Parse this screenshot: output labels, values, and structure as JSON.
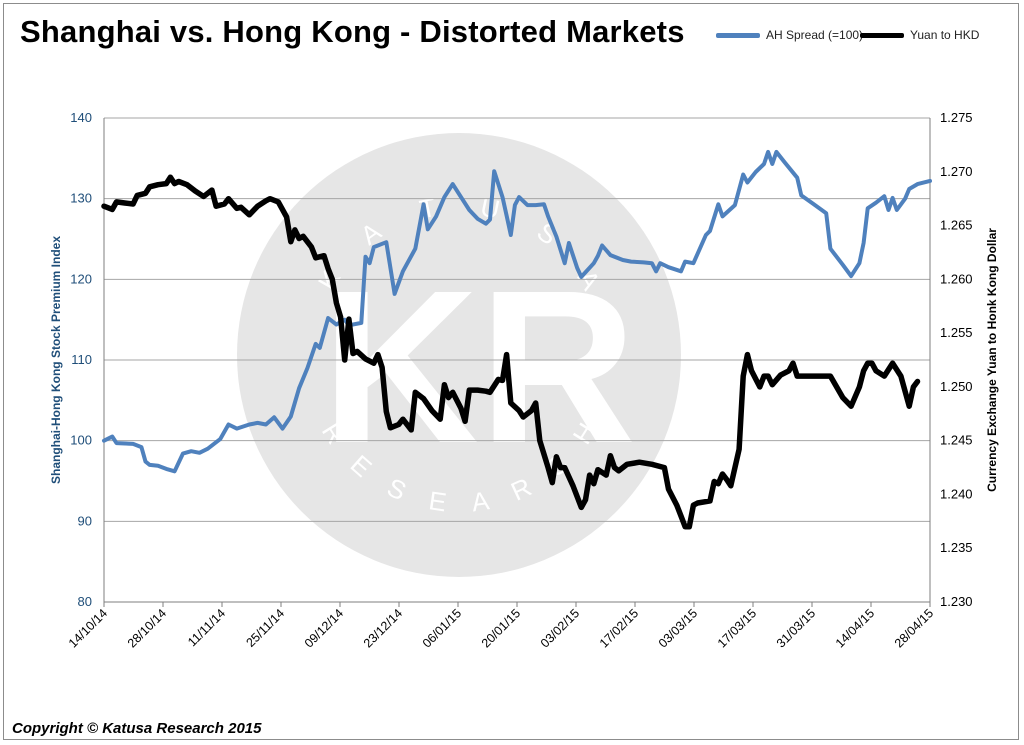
{
  "chart_data": {
    "type": "line",
    "title": "Shanghai vs. Hong Kong - Distorted Markets",
    "copyright": "Copyright © Katusa Research 2015",
    "watermark": {
      "initials": "KR",
      "top_text": "KATUSA",
      "bottom_text": "RESEARCH"
    },
    "legend_position": "top-right",
    "grid": true,
    "colors": {
      "ah_spread": "#4f81bd",
      "yuan_hkd": "#000000",
      "grid": "#a6a6a6",
      "watermark": "#e6e6e6"
    },
    "x_ticks": [
      "14/10/14",
      "28/10/14",
      "11/11/14",
      "25/11/14",
      "09/12/14",
      "23/12/14",
      "06/01/15",
      "20/01/15",
      "03/02/15",
      "17/02/15",
      "03/03/15",
      "17/03/15",
      "31/03/15",
      "14/04/15",
      "28/04/15"
    ],
    "x_range": [
      "2014-10-14",
      "2015-05-01"
    ],
    "y_left": {
      "label": "Shanghai-Hong Kong Stock Premium Index",
      "ylim": [
        80,
        140
      ],
      "ticks": [
        "80",
        "90",
        "100",
        "110",
        "120",
        "130",
        "140"
      ]
    },
    "y_right": {
      "label": "Currency Exchange Yuan to Honk Kong Dollar",
      "ylim": [
        1.23,
        1.275
      ],
      "ticks": [
        "1.230",
        "1.235",
        "1.240",
        "1.245",
        "1.250",
        "1.255",
        "1.260",
        "1.265",
        "1.270",
        "1.275"
      ]
    },
    "series": [
      {
        "name": "AH Spread (=100)",
        "axis": "left",
        "points": [
          [
            "2014-10-14",
            100.0
          ],
          [
            "2014-10-16",
            100.5
          ],
          [
            "2014-10-17",
            99.7
          ],
          [
            "2014-10-21",
            99.6
          ],
          [
            "2014-10-23",
            99.2
          ],
          [
            "2014-10-24",
            97.4
          ],
          [
            "2014-10-25",
            97.0
          ],
          [
            "2014-10-27",
            96.9
          ],
          [
            "2014-10-29",
            96.5
          ],
          [
            "2014-10-31",
            96.2
          ],
          [
            "2014-11-02",
            98.4
          ],
          [
            "2014-11-04",
            98.7
          ],
          [
            "2014-11-06",
            98.5
          ],
          [
            "2014-11-08",
            99.0
          ],
          [
            "2014-11-11",
            100.2
          ],
          [
            "2014-11-13",
            102.0
          ],
          [
            "2014-11-15",
            101.5
          ],
          [
            "2014-11-18",
            102.0
          ],
          [
            "2014-11-20",
            102.2
          ],
          [
            "2014-11-22",
            102.0
          ],
          [
            "2014-11-24",
            102.9
          ],
          [
            "2014-11-26",
            101.5
          ],
          [
            "2014-11-28",
            103.0
          ],
          [
            "2014-11-30",
            106.5
          ],
          [
            "2014-12-02",
            109.0
          ],
          [
            "2014-12-04",
            112.0
          ],
          [
            "2014-12-05",
            111.5
          ],
          [
            "2014-12-07",
            115.2
          ],
          [
            "2014-12-09",
            114.4
          ],
          [
            "2014-12-11",
            115.0
          ],
          [
            "2014-12-12",
            114.3
          ],
          [
            "2014-12-15",
            114.6
          ],
          [
            "2014-12-16",
            122.8
          ],
          [
            "2014-12-17",
            122.0
          ],
          [
            "2014-12-18",
            124.0
          ],
          [
            "2014-12-21",
            124.6
          ],
          [
            "2014-12-23",
            118.2
          ],
          [
            "2014-12-25",
            121.0
          ],
          [
            "2014-12-28",
            123.8
          ],
          [
            "2014-12-30",
            129.3
          ],
          [
            "2014-12-31",
            126.2
          ],
          [
            "2015-01-02",
            127.8
          ],
          [
            "2015-01-04",
            130.2
          ],
          [
            "2015-01-06",
            131.8
          ],
          [
            "2015-01-08",
            130.2
          ],
          [
            "2015-01-10",
            128.6
          ],
          [
            "2015-01-12",
            127.5
          ],
          [
            "2015-01-14",
            126.9
          ],
          [
            "2015-01-15",
            127.4
          ],
          [
            "2015-01-16",
            133.4
          ],
          [
            "2015-01-18",
            130.2
          ],
          [
            "2015-01-19",
            127.9
          ],
          [
            "2015-01-20",
            125.5
          ],
          [
            "2015-01-21",
            129.2
          ],
          [
            "2015-01-22",
            130.2
          ],
          [
            "2015-01-24",
            129.2
          ],
          [
            "2015-01-26",
            129.2
          ],
          [
            "2015-01-28",
            129.3
          ],
          [
            "2015-01-29",
            127.8
          ],
          [
            "2015-01-31",
            125.3
          ],
          [
            "2015-02-02",
            122.0
          ],
          [
            "2015-02-03",
            124.5
          ],
          [
            "2015-02-05",
            121.4
          ],
          [
            "2015-02-06",
            120.3
          ],
          [
            "2015-02-09",
            122.0
          ],
          [
            "2015-02-10",
            122.9
          ],
          [
            "2015-02-11",
            124.2
          ],
          [
            "2015-02-13",
            123.0
          ],
          [
            "2015-02-16",
            122.4
          ],
          [
            "2015-02-18",
            122.2
          ],
          [
            "2015-02-21",
            122.1
          ],
          [
            "2015-02-23",
            122.0
          ],
          [
            "2015-02-24",
            121.0
          ],
          [
            "2015-02-25",
            122.0
          ],
          [
            "2015-02-27",
            121.5
          ],
          [
            "2015-03-02",
            121.0
          ],
          [
            "2015-03-03",
            122.2
          ],
          [
            "2015-03-05",
            122.0
          ],
          [
            "2015-03-08",
            125.5
          ],
          [
            "2015-03-09",
            126.0
          ],
          [
            "2015-03-11",
            129.3
          ],
          [
            "2015-03-12",
            127.8
          ],
          [
            "2015-03-15",
            129.2
          ],
          [
            "2015-03-17",
            133.0
          ],
          [
            "2015-03-18",
            132.0
          ],
          [
            "2015-03-20",
            133.3
          ],
          [
            "2015-03-22",
            134.3
          ],
          [
            "2015-03-23",
            135.8
          ],
          [
            "2015-03-24",
            134.3
          ],
          [
            "2015-03-25",
            135.8
          ],
          [
            "2015-03-27",
            134.5
          ],
          [
            "2015-03-30",
            132.6
          ],
          [
            "2015-03-31",
            130.4
          ],
          [
            "2015-04-03",
            129.3
          ],
          [
            "2015-04-06",
            128.2
          ],
          [
            "2015-04-07",
            123.8
          ],
          [
            "2015-04-10",
            121.8
          ],
          [
            "2015-04-12",
            120.4
          ],
          [
            "2015-04-14",
            122.0
          ],
          [
            "2015-04-15",
            124.5
          ],
          [
            "2015-04-16",
            128.8
          ],
          [
            "2015-04-18",
            129.5
          ],
          [
            "2015-04-20",
            130.3
          ],
          [
            "2015-04-21",
            128.6
          ],
          [
            "2015-04-22",
            130.1
          ],
          [
            "2015-04-23",
            128.6
          ],
          [
            "2015-04-25",
            130.0
          ],
          [
            "2015-04-26",
            131.2
          ],
          [
            "2015-04-28",
            131.8
          ],
          [
            "2015-05-01",
            132.2
          ]
        ]
      },
      {
        "name": "Yuan to HKD",
        "axis": "right",
        "points": [
          [
            "2014-10-14",
            1.2668
          ],
          [
            "2014-10-16",
            1.2665
          ],
          [
            "2014-10-17",
            1.2672
          ],
          [
            "2014-10-19",
            1.2671
          ],
          [
            "2014-10-21",
            1.267
          ],
          [
            "2014-10-22",
            1.2678
          ],
          [
            "2014-10-24",
            1.268
          ],
          [
            "2014-10-25",
            1.2686
          ],
          [
            "2014-10-27",
            1.2688
          ],
          [
            "2014-10-29",
            1.2689
          ],
          [
            "2014-10-30",
            1.2695
          ],
          [
            "2014-10-31",
            1.2689
          ],
          [
            "2014-11-01",
            1.2691
          ],
          [
            "2014-11-03",
            1.2688
          ],
          [
            "2014-11-05",
            1.2682
          ],
          [
            "2014-11-07",
            1.2677
          ],
          [
            "2014-11-09",
            1.2683
          ],
          [
            "2014-11-10",
            1.2668
          ],
          [
            "2014-11-12",
            1.267
          ],
          [
            "2014-11-13",
            1.2675
          ],
          [
            "2014-11-15",
            1.2666
          ],
          [
            "2014-11-16",
            1.2667
          ],
          [
            "2014-11-18",
            1.266
          ],
          [
            "2014-11-20",
            1.2668
          ],
          [
            "2014-11-22",
            1.2673
          ],
          [
            "2014-11-23",
            1.2675
          ],
          [
            "2014-11-25",
            1.2672
          ],
          [
            "2014-11-27",
            1.2658
          ],
          [
            "2014-11-28",
            1.2635
          ],
          [
            "2014-11-29",
            1.2646
          ],
          [
            "2014-11-30",
            1.2638
          ],
          [
            "2014-12-01",
            1.264
          ],
          [
            "2014-12-03",
            1.263
          ],
          [
            "2014-12-04",
            1.262
          ],
          [
            "2014-12-06",
            1.2622
          ],
          [
            "2014-12-07",
            1.261
          ],
          [
            "2014-12-08",
            1.26
          ],
          [
            "2014-12-09",
            1.2578
          ],
          [
            "2014-12-10",
            1.2565
          ],
          [
            "2014-12-11",
            1.2525
          ],
          [
            "2014-12-12",
            1.2563
          ],
          [
            "2014-12-13",
            1.2531
          ],
          [
            "2014-12-14",
            1.2533
          ],
          [
            "2014-12-16",
            1.2526
          ],
          [
            "2014-12-18",
            1.2522
          ],
          [
            "2014-12-19",
            1.253
          ],
          [
            "2014-12-20",
            1.2518
          ],
          [
            "2014-12-21",
            1.2477
          ],
          [
            "2014-12-22",
            1.2462
          ],
          [
            "2014-12-24",
            1.2465
          ],
          [
            "2014-12-25",
            1.247
          ],
          [
            "2014-12-27",
            1.246
          ],
          [
            "2014-12-28",
            1.2495
          ],
          [
            "2014-12-30",
            1.2489
          ],
          [
            "2015-01-01",
            1.2478
          ],
          [
            "2015-01-03",
            1.247
          ],
          [
            "2015-01-04",
            1.2502
          ],
          [
            "2015-01-05",
            1.249
          ],
          [
            "2015-01-06",
            1.2495
          ],
          [
            "2015-01-08",
            1.248
          ],
          [
            "2015-01-09",
            1.2468
          ],
          [
            "2015-01-10",
            1.2497
          ],
          [
            "2015-01-12",
            1.2497
          ],
          [
            "2015-01-14",
            1.2496
          ],
          [
            "2015-01-15",
            1.2495
          ],
          [
            "2015-01-17",
            1.2507
          ],
          [
            "2015-01-18",
            1.2506
          ],
          [
            "2015-01-19",
            1.253
          ],
          [
            "2015-01-20",
            1.2485
          ],
          [
            "2015-01-22",
            1.2478
          ],
          [
            "2015-01-23",
            1.2472
          ],
          [
            "2015-01-25",
            1.2478
          ],
          [
            "2015-01-26",
            1.2485
          ],
          [
            "2015-01-27",
            1.245
          ],
          [
            "2015-01-29",
            1.2425
          ],
          [
            "2015-01-30",
            1.2411
          ],
          [
            "2015-01-31",
            1.2435
          ],
          [
            "2015-02-01",
            1.2425
          ],
          [
            "2015-02-02",
            1.2425
          ],
          [
            "2015-02-04",
            1.2408
          ],
          [
            "2015-02-06",
            1.2388
          ],
          [
            "2015-02-07",
            1.2395
          ],
          [
            "2015-02-08",
            1.2418
          ],
          [
            "2015-02-09",
            1.241
          ],
          [
            "2015-02-10",
            1.2423
          ],
          [
            "2015-02-12",
            1.2418
          ],
          [
            "2015-02-13",
            1.2436
          ],
          [
            "2015-02-14",
            1.2425
          ],
          [
            "2015-02-15",
            1.2422
          ],
          [
            "2015-02-17",
            1.2428
          ],
          [
            "2015-02-20",
            1.243
          ],
          [
            "2015-02-23",
            1.2428
          ],
          [
            "2015-02-26",
            1.2425
          ],
          [
            "2015-02-27",
            1.2405
          ],
          [
            "2015-02-29",
            1.239
          ],
          [
            "2015-03-02",
            1.238
          ],
          [
            "2015-03-03",
            1.237
          ],
          [
            "2015-03-04",
            1.237
          ],
          [
            "2015-03-05",
            1.239
          ],
          [
            "2015-03-06",
            1.2392
          ],
          [
            "2015-03-09",
            1.2394
          ],
          [
            "2015-03-10",
            1.2412
          ],
          [
            "2015-03-11",
            1.241
          ],
          [
            "2015-03-12",
            1.2419
          ],
          [
            "2015-03-13",
            1.2414
          ],
          [
            "2015-03-14",
            1.2408
          ],
          [
            "2015-03-16",
            1.2442
          ],
          [
            "2015-03-17",
            1.251
          ],
          [
            "2015-03-18",
            1.253
          ],
          [
            "2015-03-19",
            1.2515
          ],
          [
            "2015-03-21",
            1.25
          ],
          [
            "2015-03-22",
            1.251
          ],
          [
            "2015-03-23",
            1.251
          ],
          [
            "2015-03-24",
            1.2502
          ],
          [
            "2015-03-26",
            1.2511
          ],
          [
            "2015-03-28",
            1.2515
          ],
          [
            "2015-03-29",
            1.2522
          ],
          [
            "2015-03-30",
            1.251
          ],
          [
            "2015-04-02",
            1.251
          ],
          [
            "2015-04-05",
            1.251
          ],
          [
            "2015-04-07",
            1.251
          ],
          [
            "2015-04-10",
            1.249
          ],
          [
            "2015-04-12",
            1.2482
          ],
          [
            "2015-04-14",
            1.25
          ],
          [
            "2015-04-15",
            1.2515
          ],
          [
            "2015-04-16",
            1.2522
          ],
          [
            "2015-04-17",
            1.2522
          ],
          [
            "2015-04-18",
            1.2515
          ],
          [
            "2015-04-20",
            1.251
          ],
          [
            "2015-04-22",
            1.2522
          ],
          [
            "2015-04-24",
            1.251
          ],
          [
            "2015-04-26",
            1.2482
          ],
          [
            "2015-04-27",
            1.25
          ],
          [
            "2015-04-28",
            1.2505
          ]
        ]
      }
    ]
  }
}
